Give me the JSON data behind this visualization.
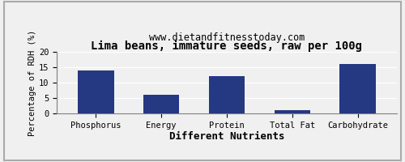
{
  "title": "Lima beans, immature seeds, raw per 100g",
  "subtitle": "www.dietandfitnesstoday.com",
  "xlabel": "Different Nutrients",
  "ylabel": "Percentage of RDH (%)",
  "categories": [
    "Phosphorus",
    "Energy",
    "Protein",
    "Total Fat",
    "Carbohydrate"
  ],
  "values": [
    14.0,
    6.1,
    12.0,
    1.0,
    16.1
  ],
  "bar_color": "#253882",
  "ylim": [
    0,
    20
  ],
  "yticks": [
    0,
    5,
    10,
    15,
    20
  ],
  "background_color": "#f0f0f0",
  "title_fontsize": 10,
  "subtitle_fontsize": 8.5,
  "xlabel_fontsize": 9,
  "ylabel_fontsize": 7.5,
  "tick_fontsize": 7.5,
  "bar_width": 0.55
}
